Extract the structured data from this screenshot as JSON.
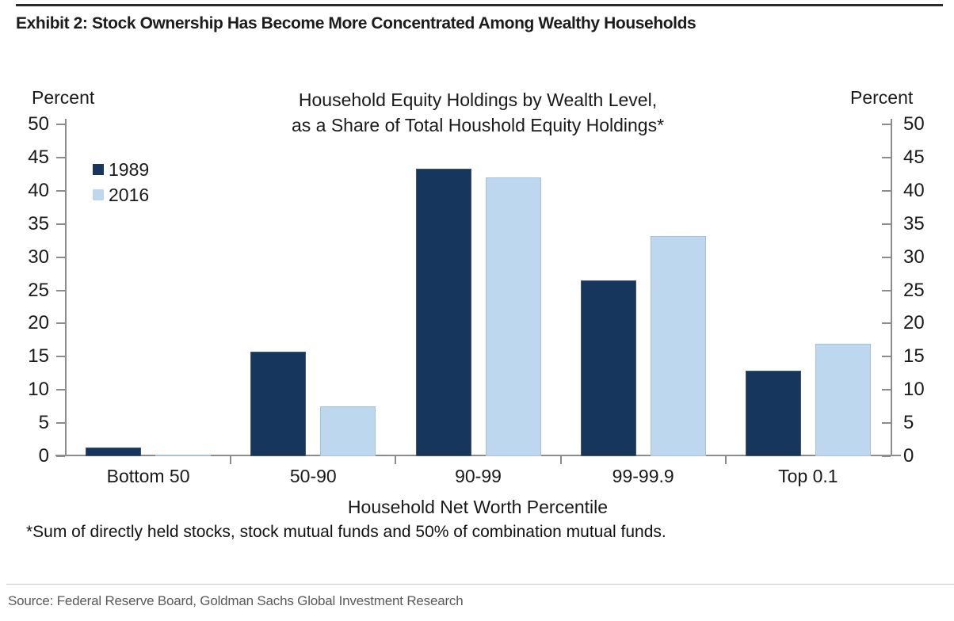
{
  "page": {
    "exhibit_title": "Exhibit 2: Stock Ownership Has Become More Concentrated Among Wealthy Households",
    "source": "Source: Federal Reserve Board, Goldman Sachs Global Investment Research"
  },
  "chart_data": {
    "type": "bar",
    "title_line1": "Household Equity Holdings by Wealth Level,",
    "title_line2": "as a Share of Total Houshold Equity Holdings*",
    "left_axis_label": "Percent",
    "right_axis_label": "Percent",
    "xlabel": "Household Net Worth Percentile",
    "footnote": "*Sum of directly held stocks, stock mutual funds and 50% of combination mutual funds.",
    "categories": [
      "Bottom 50",
      "50-90",
      "90-99",
      "99-99.9",
      "Top 0.1"
    ],
    "series": [
      {
        "name": "1989",
        "color": "#17365D",
        "border": "#44546a",
        "values": [
          1.3,
          15.8,
          43.3,
          26.5,
          12.9
        ]
      },
      {
        "name": "2016",
        "color": "#BDD7EE",
        "border": "#a6c1dc",
        "values": [
          0.2,
          7.5,
          42.0,
          33.2,
          16.9
        ]
      }
    ],
    "ylim": [
      0,
      50
    ],
    "yticks": [
      0,
      5,
      10,
      15,
      20,
      25,
      30,
      35,
      40,
      45,
      50
    ],
    "legend_position": "upper-left",
    "grid": false,
    "axis_color": "#8c8c8c"
  }
}
